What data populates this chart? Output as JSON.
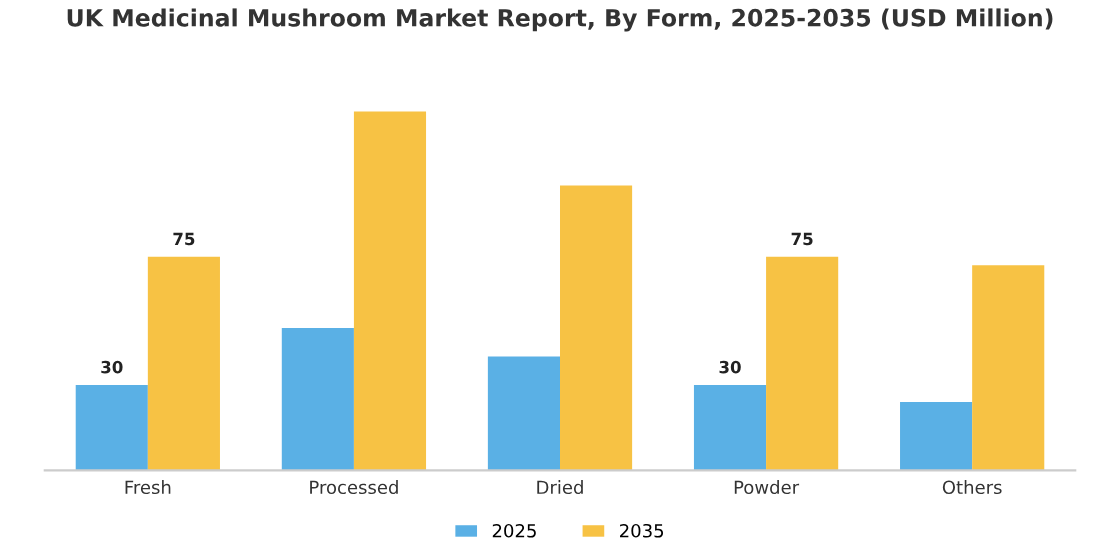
{
  "chart_data": {
    "type": "bar",
    "title": "UK Medicinal Mushroom Market Report, By Form, 2025-2035 (USD Million)",
    "categories": [
      "Fresh",
      "Processed",
      "Dried",
      "Powder",
      "Others"
    ],
    "series": [
      {
        "name": "2025",
        "color": "#5ab0e5",
        "values": [
          30,
          50,
          40,
          30,
          24
        ],
        "value_labels": [
          "30",
          null,
          null,
          "30",
          null
        ]
      },
      {
        "name": "2035",
        "color": "#f7c244",
        "values": [
          75,
          126,
          100,
          75,
          72
        ],
        "value_labels": [
          "75",
          null,
          null,
          "75",
          null
        ]
      }
    ],
    "legend": "bottom",
    "grid": false,
    "tick_labels": "x"
  }
}
